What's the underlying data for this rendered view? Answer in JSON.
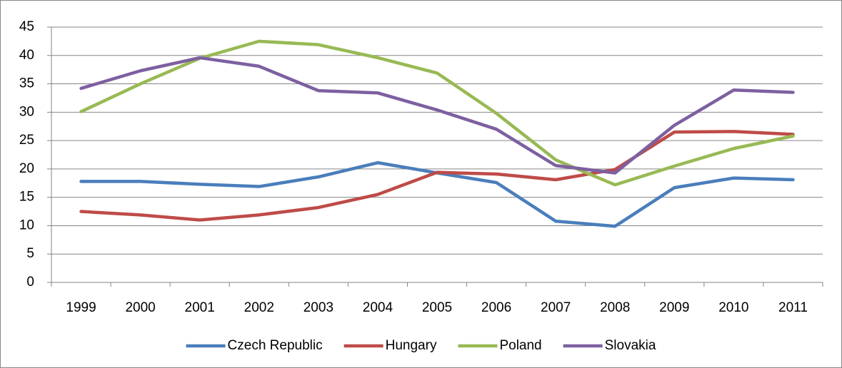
{
  "chart_data": {
    "type": "line",
    "categories": [
      "1999",
      "2000",
      "2001",
      "2002",
      "2003",
      "2004",
      "2005",
      "2006",
      "2007",
      "2008",
      "2009",
      "2010",
      "2011"
    ],
    "series": [
      {
        "name": "Czech Republic",
        "color": "#4a7ebb",
        "values": [
          17.8,
          17.8,
          17.3,
          16.9,
          18.6,
          21.1,
          19.3,
          17.6,
          10.8,
          9.9,
          16.7,
          18.4,
          18.1
        ]
      },
      {
        "name": "Hungary",
        "color": "#be4b48",
        "values": [
          12.5,
          11.9,
          11.0,
          11.9,
          13.2,
          15.5,
          19.4,
          19.1,
          18.1,
          19.9,
          26.5,
          26.6,
          26.1
        ]
      },
      {
        "name": "Poland",
        "color": "#98b954",
        "values": [
          30.1,
          35.0,
          39.5,
          42.5,
          41.9,
          39.6,
          36.9,
          29.8,
          21.6,
          17.2,
          20.5,
          23.6,
          25.8
        ]
      },
      {
        "name": "Slovakia",
        "color": "#7d60a0",
        "values": [
          34.2,
          37.3,
          39.6,
          38.1,
          33.8,
          33.4,
          30.4,
          27.0,
          20.6,
          19.3,
          27.7,
          33.9,
          33.5
        ]
      }
    ],
    "ylim": [
      0,
      45
    ],
    "yticks": [
      0,
      5,
      10,
      15,
      20,
      25,
      30,
      35,
      40,
      45
    ],
    "grid": true,
    "legend": "bottom"
  }
}
